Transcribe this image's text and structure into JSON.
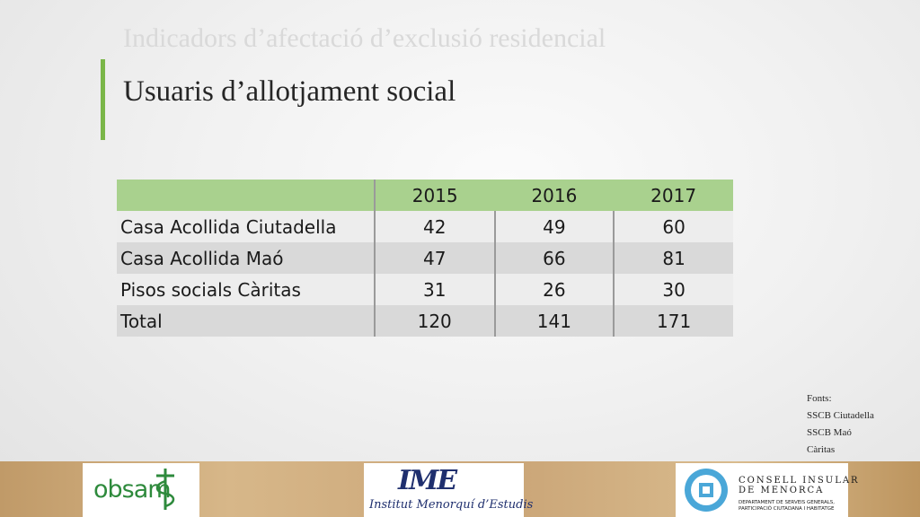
{
  "slide": {
    "supertitle": "Indicadors d’afectació d’exclusió residencial",
    "title": "Usuaris d’allotjament social",
    "accent_color": "#7ab648"
  },
  "table": {
    "header_color": "#a9d18e",
    "columns": [
      "",
      "2015",
      "2016",
      "2017"
    ],
    "rows": [
      {
        "label": "Casa Acollida Ciutadella",
        "values": [
          "42",
          "49",
          "60"
        ]
      },
      {
        "label": "Casa Acollida Maó",
        "values": [
          "47",
          "66",
          "81"
        ]
      },
      {
        "label": "Pisos socials Càritas",
        "values": [
          "31",
          "26",
          "30"
        ]
      },
      {
        "label": "Total",
        "values": [
          "120",
          "141",
          "171"
        ]
      }
    ]
  },
  "sources": {
    "heading": "Fonts:",
    "items": [
      "SSCB Ciutadella",
      "SSCB Maó",
      "Càritas"
    ]
  },
  "footer": {
    "logos": {
      "obsam": {
        "text": "obsam",
        "icon": "caduceus-icon"
      },
      "ime": {
        "mark": "IME",
        "text": "Institut Menorquí d’Estudis"
      },
      "consell": {
        "name_line1": "CONSELL INSULAR",
        "name_line2": "DE MENORCA",
        "dept_line1": "DEPARTAMENT DE SERVEIS GENERALS,",
        "dept_line2": "PARTICIPACIÓ CIUTADANA I HABITATGE",
        "icon": "island-seal-icon"
      }
    }
  }
}
